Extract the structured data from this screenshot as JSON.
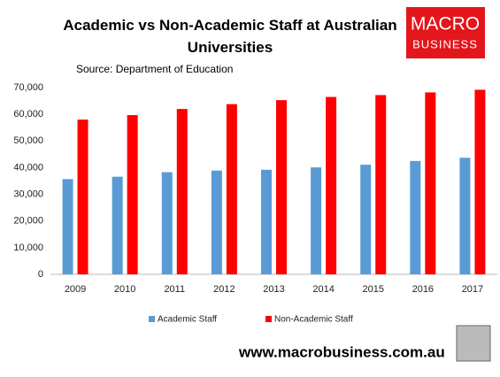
{
  "chart_data": {
    "type": "bar",
    "title": "Academic vs Non-Academic Staff at Australian Universities",
    "subtitle": "Source: Department of Education",
    "categories": [
      "2009",
      "2010",
      "2011",
      "2012",
      "2013",
      "2014",
      "2015",
      "2016",
      "2017"
    ],
    "series": [
      {
        "name": "Academic Staff",
        "color": "#5b9bd5",
        "values": [
          35700,
          36600,
          38300,
          38900,
          39200,
          40100,
          41100,
          42500,
          43700
        ]
      },
      {
        "name": "Non-Academic Staff",
        "color": "#ff0000",
        "values": [
          58000,
          59700,
          62000,
          63800,
          65300,
          66500,
          67200,
          68200,
          69200
        ]
      }
    ],
    "ylim": [
      0,
      70000
    ],
    "yticks": [
      0,
      {
        "value": 10000,
        "label": "10,000"
      },
      {
        "value": 20000,
        "label": "20,000"
      },
      {
        "value": 30000,
        "label": "30,000"
      },
      {
        "value": 40000,
        "label": "40,000"
      },
      {
        "value": 50000,
        "label": "50,000"
      },
      {
        "value": 60000,
        "label": "60,000"
      },
      {
        "value": 70000,
        "label": "70,000"
      }
    ],
    "grid": false,
    "legend": "bottom"
  },
  "logo": {
    "line1": "MACRO",
    "line2": "BUSINESS"
  },
  "footer": "www.macrobusiness.com.au"
}
